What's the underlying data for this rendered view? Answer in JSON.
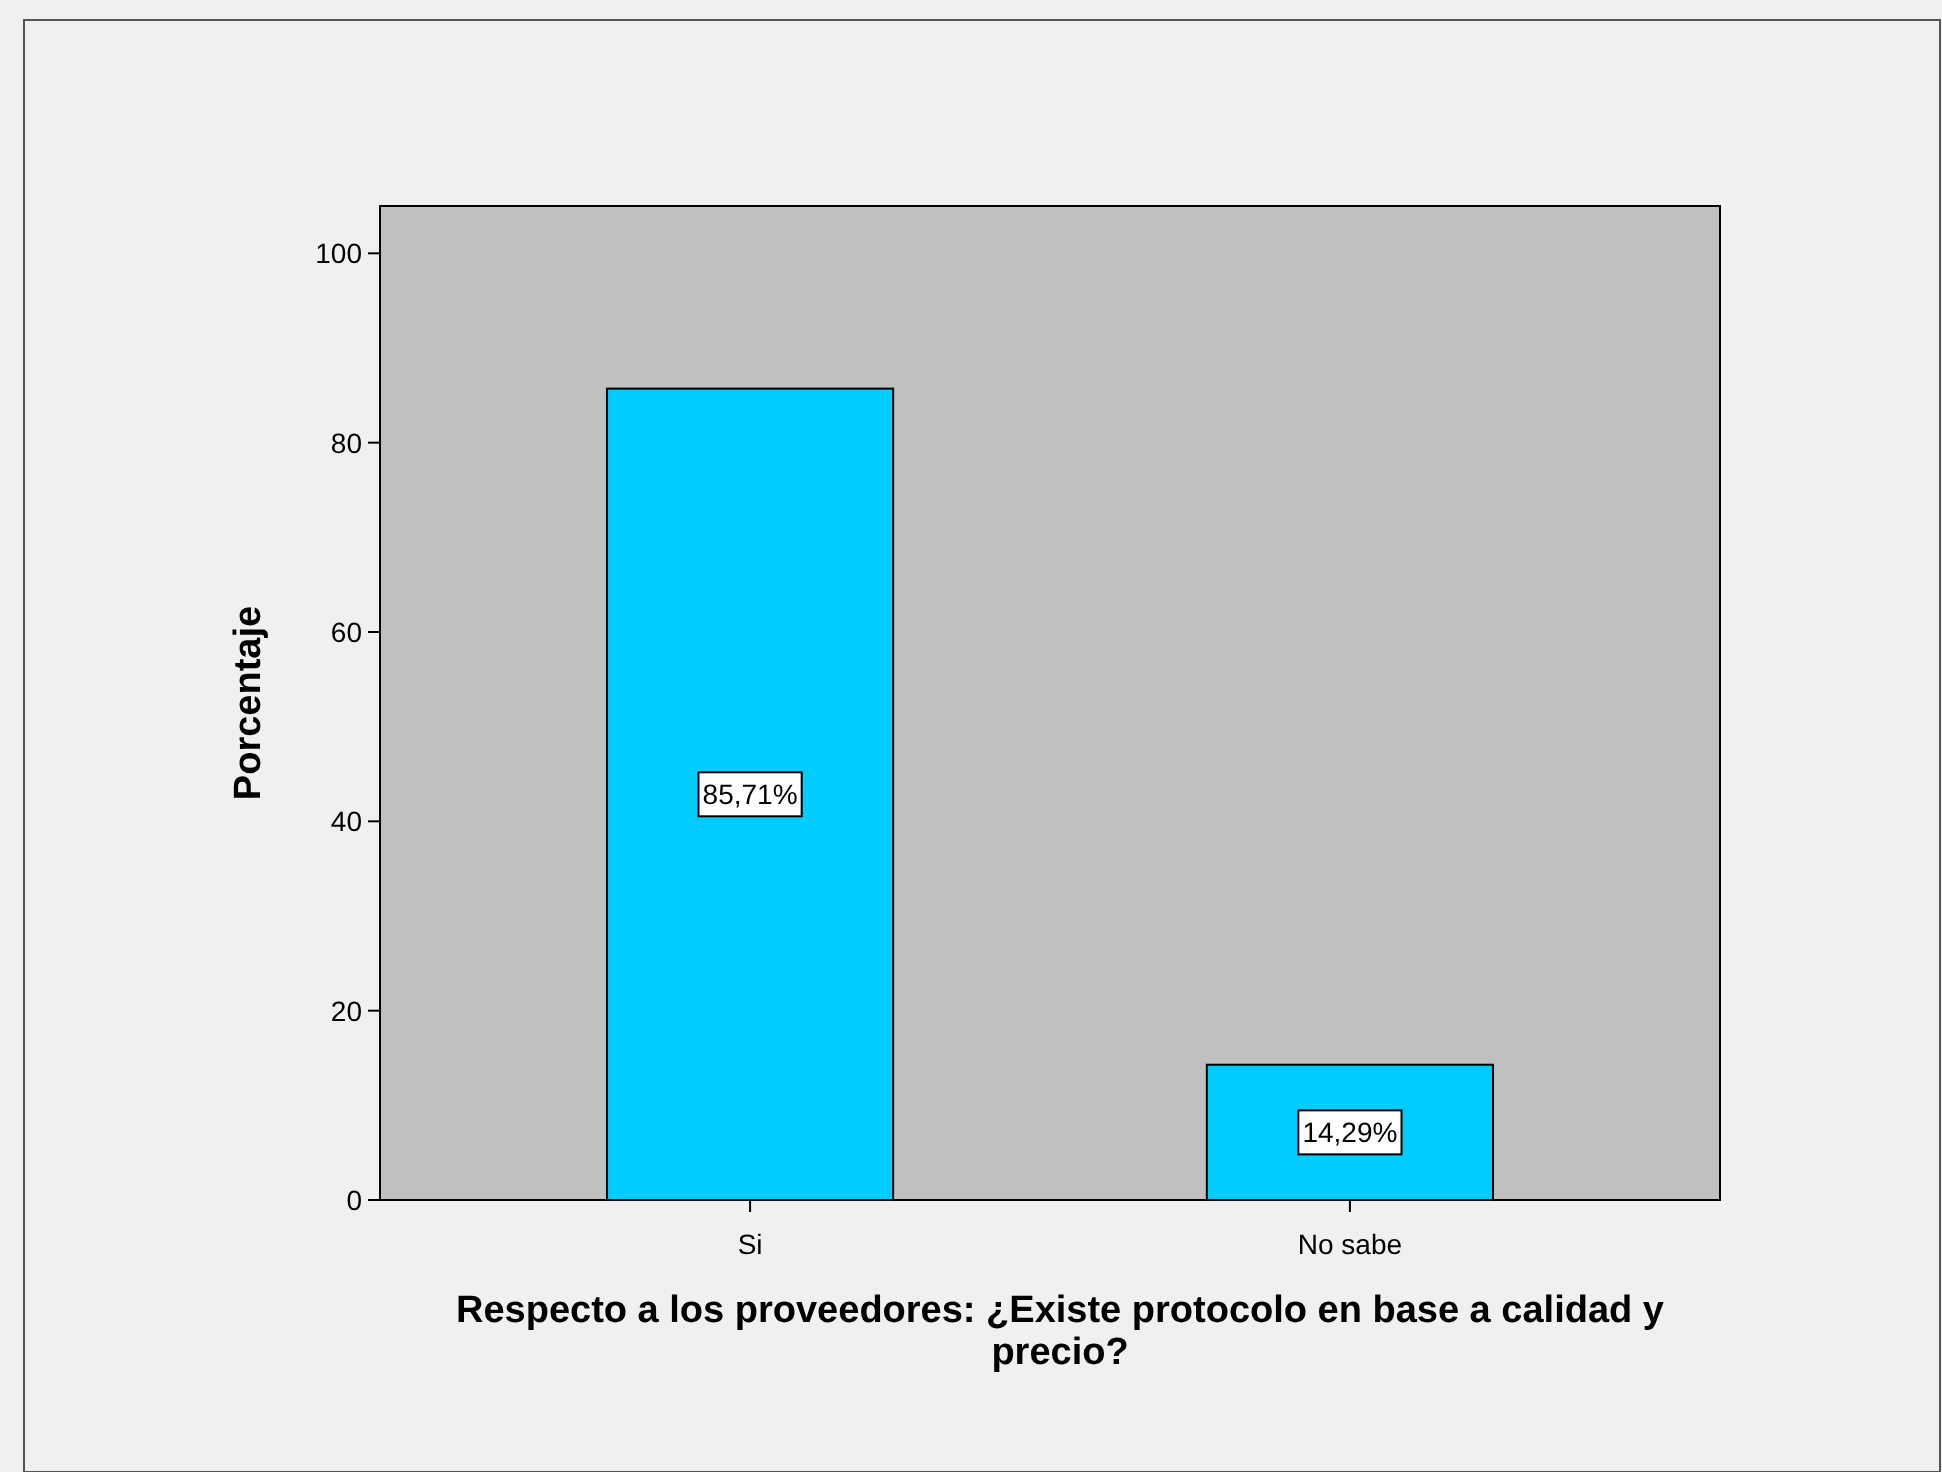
{
  "chart_data": {
    "type": "bar",
    "categories": [
      "Si",
      "No sabe"
    ],
    "values": [
      85.71,
      14.29
    ],
    "value_labels": [
      "85,71%",
      "14,29%"
    ],
    "color": "#00ccff",
    "xlabel": "Respecto a los proveedores: ¿Existe protocolo en base a calidad y precio?",
    "ylabel": "Porcentaje",
    "ylim": [
      0,
      105
    ],
    "yticks": [
      0,
      20,
      40,
      60,
      80,
      100
    ],
    "grid": false
  }
}
